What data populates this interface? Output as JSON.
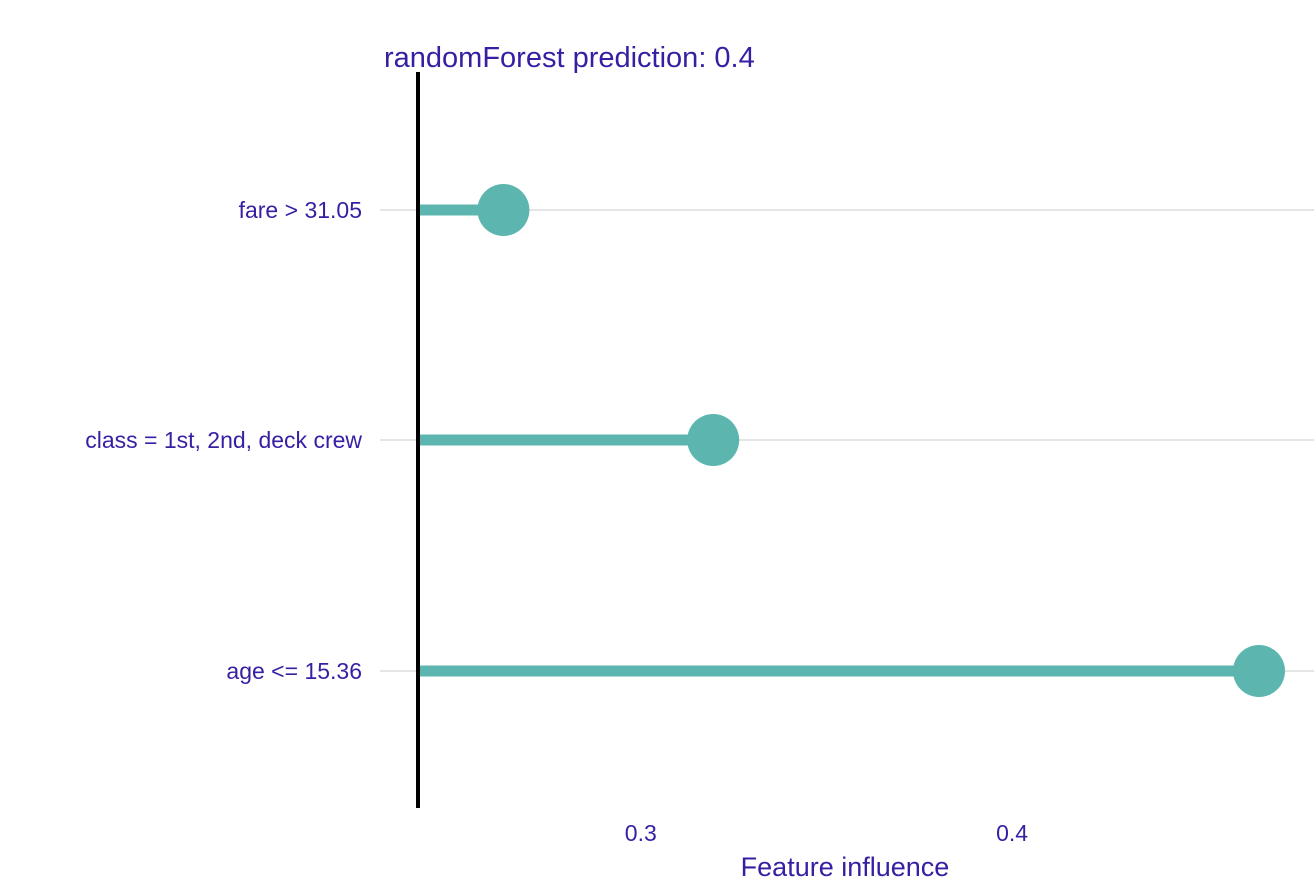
{
  "chart_data": {
    "type": "lollipop",
    "title": "randomForest prediction:  0.4",
    "xlabel": "Feature influence",
    "ylabel": "",
    "baseline": 0.24,
    "xlim": [
      0.24,
      0.47
    ],
    "xticks": [
      {
        "value": 0.3,
        "label": "0.3"
      },
      {
        "value": 0.4,
        "label": "0.4"
      }
    ],
    "categories": [
      "fare > 31.05",
      "class = 1st, 2nd, deck crew",
      "age <= 15.36"
    ],
    "values": [
      0.263,
      0.3195,
      0.4665
    ],
    "grid": true,
    "colors": {
      "point": "#5CB6AF",
      "text": "#371EA3",
      "baseline": "#000000",
      "grid": "#E5E5E5"
    }
  }
}
